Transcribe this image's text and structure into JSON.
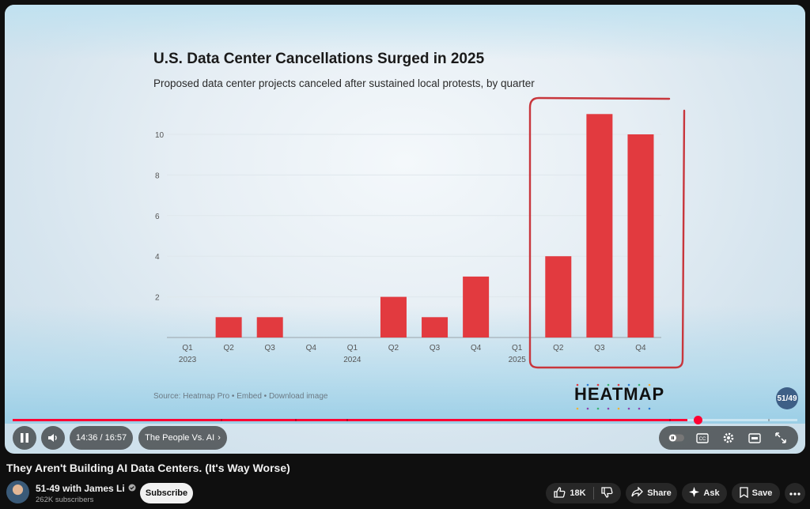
{
  "chart": {
    "title": "U.S. Data Center Cancellations Surged in 2025",
    "subtitle": "Proposed data center projects canceled after sustained local protests, by quarter",
    "source": "Source: Heatmap Pro • Embed • Download image",
    "brand": "HEATMAP",
    "badge": "51/49"
  },
  "chart_data": {
    "type": "bar",
    "title": "U.S. Data Center Cancellations Surged in 2025",
    "subtitle": "Proposed data center projects canceled after sustained local protests, by quarter",
    "categories": [
      "Q1 2023",
      "Q2",
      "Q3",
      "Q4",
      "Q1 2024",
      "Q2",
      "Q3",
      "Q4",
      "Q1 2025",
      "Q2",
      "Q3",
      "Q4"
    ],
    "tick_labels": [
      [
        "Q1",
        "2023"
      ],
      [
        "Q2"
      ],
      [
        "Q3"
      ],
      [
        "Q4"
      ],
      [
        "Q1",
        "2024"
      ],
      [
        "Q2"
      ],
      [
        "Q3"
      ],
      [
        "Q4"
      ],
      [
        "Q1",
        "2025"
      ],
      [
        "Q2"
      ],
      [
        "Q3"
      ],
      [
        "Q4"
      ]
    ],
    "values": [
      0,
      1,
      1,
      0,
      0,
      2,
      1,
      3,
      0,
      4,
      11,
      10
    ],
    "yticks": [
      2,
      4,
      6,
      8,
      10
    ],
    "ylim": [
      0,
      11
    ],
    "bar_color": "#e23a3f",
    "highlight": "2025 Q2–Q4 circled",
    "grid": true
  },
  "player": {
    "time": "14:36 / 16:57",
    "chapter": "The People Vs. AI",
    "progress_percent": 86
  },
  "video": {
    "title": "They Aren't Building AI Data Centers. (It's Way Worse)",
    "channel": "51-49 with James Li",
    "subscribers": "262K subscribers",
    "subscribe_label": "Subscribe",
    "likes": "18K",
    "share_label": "Share",
    "ask_label": "Ask",
    "save_label": "Save"
  },
  "colors": {
    "accent": "#ff0033",
    "bar": "#e23a3f",
    "background": "#0f0f0f"
  }
}
